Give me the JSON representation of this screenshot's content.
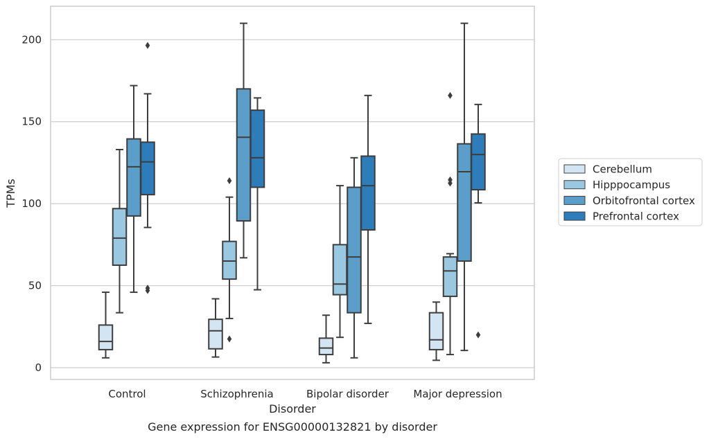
{
  "chart_data": {
    "type": "boxplot",
    "xlabel": "Disorder",
    "ylabel": "TPMs",
    "caption": "Gene expression for ENSG00000132821 by disorder",
    "ylim": [
      -7,
      221
    ],
    "yticks": [
      0,
      50,
      100,
      150,
      200
    ],
    "grid": "horizontal",
    "legend_position": "right",
    "categories": [
      "Control",
      "Schizophrenia",
      "Bipolar disorder",
      "Major depression"
    ],
    "series": [
      {
        "name": "Cerebellum",
        "color": "#d3e4f3",
        "boxes": [
          {
            "whislo": 6,
            "q1": 11,
            "med": 16,
            "q3": 26,
            "whishi": 46,
            "fliers": []
          },
          {
            "whislo": 6.5,
            "q1": 11.5,
            "med": 22.5,
            "q3": 29.5,
            "whishi": 42,
            "fliers": []
          },
          {
            "whislo": 3,
            "q1": 8,
            "med": 12,
            "q3": 18,
            "whishi": 32,
            "fliers": []
          },
          {
            "whislo": 4.5,
            "q1": 11,
            "med": 17,
            "q3": 33.5,
            "whishi": 40,
            "fliers": []
          }
        ]
      },
      {
        "name": "Hipppocampus",
        "color": "#9ac8e0",
        "boxes": [
          {
            "whislo": 33.5,
            "q1": 62.5,
            "med": 79,
            "q3": 97,
            "whishi": 133,
            "fliers": []
          },
          {
            "whislo": 30,
            "q1": 54,
            "med": 65,
            "q3": 77,
            "whishi": 104,
            "fliers": [
              17.5,
              114
            ]
          },
          {
            "whislo": 18.5,
            "q1": 44.5,
            "med": 51,
            "q3": 75,
            "whishi": 111,
            "fliers": []
          },
          {
            "whislo": 8,
            "q1": 43.5,
            "med": 59,
            "q3": 67.5,
            "whishi": 69.5,
            "fliers": [
              112.5,
              114.5,
              166
            ]
          }
        ]
      },
      {
        "name": "Orbitofrontal cortex",
        "color": "#5b9ec9",
        "boxes": [
          {
            "whislo": 46,
            "q1": 92.5,
            "med": 122.5,
            "q3": 139.5,
            "whishi": 172,
            "fliers": []
          },
          {
            "whislo": 67,
            "q1": 89.5,
            "med": 140.5,
            "q3": 170,
            "whishi": 210,
            "fliers": []
          },
          {
            "whislo": 6,
            "q1": 33.5,
            "med": 67.5,
            "q3": 110,
            "whishi": 128,
            "fliers": []
          },
          {
            "whislo": 10.5,
            "q1": 65,
            "med": 119.5,
            "q3": 136.5,
            "whishi": 210,
            "fliers": []
          }
        ]
      },
      {
        "name": "Prefrontal cortex",
        "color": "#2d7dbb",
        "boxes": [
          {
            "whislo": 85.5,
            "q1": 105.5,
            "med": 125.5,
            "q3": 137.5,
            "whishi": 167,
            "fliers": [
              47,
              48.5,
              196.5
            ]
          },
          {
            "whislo": 47.5,
            "q1": 110,
            "med": 128,
            "q3": 157,
            "whishi": 164.5,
            "fliers": []
          },
          {
            "whislo": 27,
            "q1": 84,
            "med": 111,
            "q3": 129,
            "whishi": 166,
            "fliers": []
          },
          {
            "whislo": 100.5,
            "q1": 108.5,
            "med": 130,
            "q3": 142.5,
            "whishi": 160.5,
            "fliers": [
              20
            ]
          }
        ]
      }
    ]
  }
}
